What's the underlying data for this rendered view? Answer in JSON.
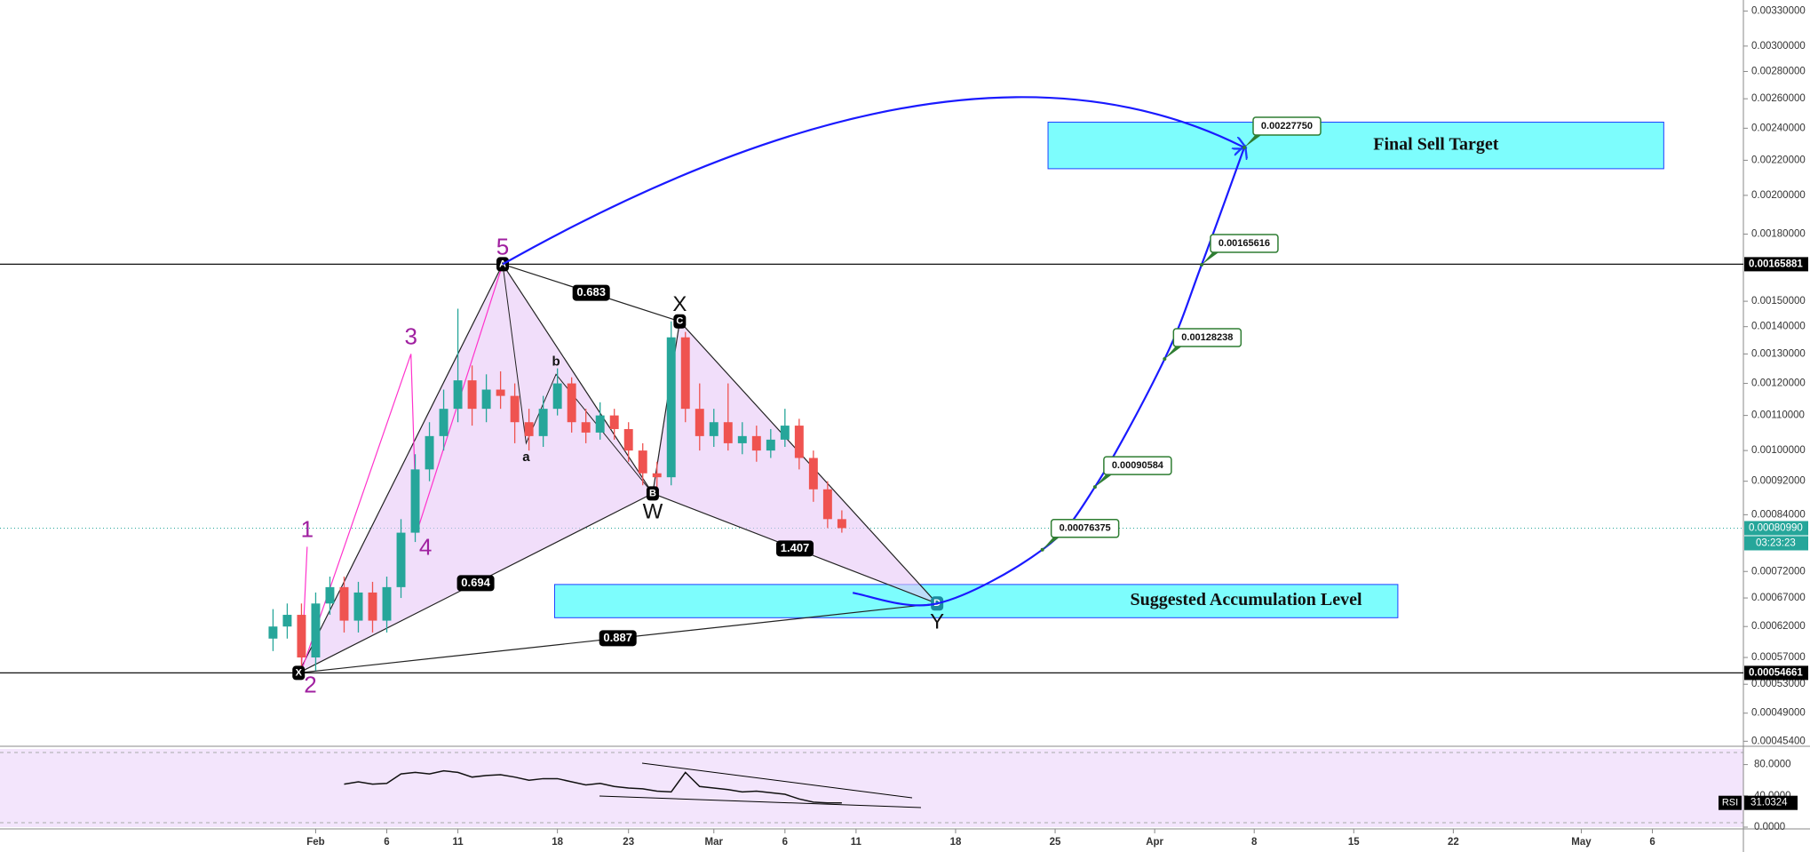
{
  "chart_data": {
    "type": "candlestick",
    "log_scale": true,
    "colors": {
      "up": "#26a69a",
      "down": "#ef5350"
    },
    "x": [
      -3,
      -2,
      -1,
      0,
      1,
      2,
      3,
      4,
      5,
      6,
      7,
      8,
      9,
      10,
      11,
      12,
      13,
      14,
      15,
      16,
      17,
      18,
      19,
      20,
      21,
      22,
      23,
      24,
      25,
      26,
      27,
      28,
      29,
      30,
      31,
      32,
      33,
      34,
      35,
      36,
      37
    ],
    "open": [
      0.0006,
      0.00062,
      0.00064,
      0.00057,
      0.00066,
      0.00069,
      0.00063,
      0.00068,
      0.00063,
      0.00069,
      0.0008,
      0.00095,
      0.00104,
      0.00112,
      0.00121,
      0.00112,
      0.00118,
      0.00116,
      0.00108,
      0.00104,
      0.00112,
      0.0012,
      0.00108,
      0.00105,
      0.0011,
      0.00106,
      0.001,
      0.00094,
      0.00093,
      0.00136,
      0.00112,
      0.00104,
      0.00108,
      0.00102,
      0.00104,
      0.001,
      0.00103,
      0.00107,
      0.00098,
      0.0009,
      0.00083
    ],
    "high": [
      0.00065,
      0.00066,
      0.00066,
      0.00068,
      0.00071,
      0.00071,
      0.0007,
      0.0007,
      0.00071,
      0.00083,
      0.00099,
      0.00108,
      0.00118,
      0.00147,
      0.00126,
      0.00123,
      0.00124,
      0.0012,
      0.00112,
      0.00116,
      0.00125,
      0.00122,
      0.00112,
      0.00114,
      0.00112,
      0.00108,
      0.00102,
      0.00097,
      0.00142,
      0.00138,
      0.0012,
      0.00112,
      0.0012,
      0.00108,
      0.00107,
      0.00106,
      0.00112,
      0.00109,
      0.001,
      0.00092,
      0.00085
    ],
    "low": [
      0.00058,
      0.0006,
      0.00055,
      0.00055,
      0.00064,
      0.00061,
      0.00061,
      0.00061,
      0.00061,
      0.00067,
      0.00078,
      0.00092,
      0.001,
      0.00108,
      0.00107,
      0.00108,
      0.00112,
      0.00102,
      0.001,
      0.00101,
      0.0011,
      0.00105,
      0.00102,
      0.00103,
      0.00103,
      0.00097,
      0.00091,
      0.00089,
      0.00091,
      0.00108,
      0.001,
      0.00101,
      0.001,
      0.00099,
      0.00097,
      0.00098,
      0.00101,
      0.00095,
      0.00087,
      0.00081,
      0.0008
    ],
    "close": [
      0.00062,
      0.00064,
      0.00057,
      0.00066,
      0.00069,
      0.00063,
      0.00068,
      0.00063,
      0.00069,
      0.0008,
      0.00095,
      0.00104,
      0.00112,
      0.00121,
      0.00112,
      0.00118,
      0.00116,
      0.00108,
      0.00104,
      0.00112,
      0.0012,
      0.00108,
      0.00105,
      0.0011,
      0.00106,
      0.001,
      0.00094,
      0.00093,
      0.00136,
      0.00112,
      0.00104,
      0.00108,
      0.00102,
      0.00104,
      0.001,
      0.00103,
      0.00107,
      0.00098,
      0.0009,
      0.00083,
      0.00081
    ],
    "xlim": [
      -22.2,
      100.4
    ],
    "xticks": [
      {
        "value": 0,
        "label": "Feb"
      },
      {
        "value": 5,
        "label": "6"
      },
      {
        "value": 10,
        "label": "11"
      },
      {
        "value": 17,
        "label": "18"
      },
      {
        "value": 22,
        "label": "23"
      },
      {
        "value": 28,
        "label": "Mar"
      },
      {
        "value": 33,
        "label": "6"
      },
      {
        "value": 38,
        "label": "11"
      },
      {
        "value": 45,
        "label": "18"
      },
      {
        "value": 52,
        "label": "25"
      },
      {
        "value": 59,
        "label": "Apr"
      },
      {
        "value": 66,
        "label": "8"
      },
      {
        "value": 73,
        "label": "15"
      },
      {
        "value": 80,
        "label": "22"
      },
      {
        "value": 89,
        "label": "May"
      },
      {
        "value": 94,
        "label": "6"
      }
    ],
    "ylim": [
      0.00045,
      0.0034
    ],
    "yticks": [
      {
        "value": 0.0033,
        "label": "0.00330000"
      },
      {
        "value": 0.003,
        "label": "0.00300000"
      },
      {
        "value": 0.0028,
        "label": "0.00280000"
      },
      {
        "value": 0.0026,
        "label": "0.00260000"
      },
      {
        "value": 0.0024,
        "label": "0.00240000"
      },
      {
        "value": 0.0022,
        "label": "0.00220000"
      },
      {
        "value": 0.002,
        "label": "0.00200000"
      },
      {
        "value": 0.0018,
        "label": "0.00180000"
      },
      {
        "value": 0.0015,
        "label": "0.00150000"
      },
      {
        "value": 0.0014,
        "label": "0.00140000"
      },
      {
        "value": 0.0013,
        "label": "0.00130000"
      },
      {
        "value": 0.0012,
        "label": "0.00120000"
      },
      {
        "value": 0.0011,
        "label": "0.00110000"
      },
      {
        "value": 0.001,
        "label": "0.00100000"
      },
      {
        "value": 0.00092,
        "label": "0.00092000"
      },
      {
        "value": 0.00084,
        "label": "0.00084000"
      },
      {
        "value": 0.00072,
        "label": "0.00072000"
      },
      {
        "value": 0.00067,
        "label": "0.00067000"
      },
      {
        "value": 0.00062,
        "label": "0.00062000"
      },
      {
        "value": 0.00057,
        "label": "0.00057000"
      },
      {
        "value": 0.00053,
        "label": "0.00053000"
      },
      {
        "value": 0.00049,
        "label": "0.00049000"
      },
      {
        "value": 0.000454,
        "label": "0.00045400"
      }
    ],
    "levels": [
      {
        "value": 0.00165881,
        "label": "0.00165881"
      },
      {
        "value": 0.00054661,
        "label": "0.00054661"
      }
    ],
    "last_price": {
      "value": 0.0008099,
      "label": "0.00080990",
      "countdown": "03:23:23"
    },
    "zones": [
      {
        "label": "Final Sell Target",
        "low": 0.00215,
        "high": 0.00244,
        "x0": 51.5,
        "x1": 94.8
      },
      {
        "label": "Suggested Accumulation Level",
        "low": 0.000635,
        "high": 0.000695,
        "x0": 16.8,
        "x1": 76.1
      }
    ],
    "targets": [
      {
        "value": 0.00076375,
        "label": "0.00076375",
        "x": 51.1
      },
      {
        "value": 0.00090584,
        "label": "0.00090584",
        "x": 54.8
      },
      {
        "value": 0.00128238,
        "label": "0.00128238",
        "x": 59.7
      },
      {
        "value": 0.00165616,
        "label": "0.00165616",
        "x": 62.3
      },
      {
        "value": 0.0022775,
        "label": "0.00227750",
        "x": 65.3
      }
    ],
    "pattern": {
      "points": [
        {
          "label": "X",
          "x": -1.2,
          "y": 0.00054661
        },
        {
          "label": "A",
          "x": 13.15,
          "y": 0.00165881
        },
        {
          "label": "B",
          "x": 23.7,
          "y": 0.00089
        },
        {
          "label": "C",
          "x": 25.6,
          "y": 0.00142
        },
        {
          "label": "D",
          "x": 43.7,
          "y": 0.00066
        }
      ],
      "ratios": [
        0.683,
        0.694,
        1.407,
        0.887
      ]
    },
    "waves": [
      {
        "label": "1",
        "x": -0.6,
        "y": 0.00077
      },
      {
        "label": "2",
        "x": -1.0,
        "y": 0.00055
      },
      {
        "label": "3",
        "x": 6.7,
        "y": 0.0013
      },
      {
        "label": "4",
        "x": 7.1,
        "y": 0.0008
      },
      {
        "label": "5",
        "x": 13.15,
        "y": 0.00165881
      }
    ],
    "subwaves": [
      {
        "label": "a",
        "x": 14.8,
        "y": 0.00102
      },
      {
        "label": "b",
        "x": 16.9,
        "y": 0.00123
      },
      {
        "label": "W",
        "x": 23.7,
        "y": 0.00089
      },
      {
        "label": "X",
        "x": 25.6,
        "y": 0.00142
      },
      {
        "label": "Y",
        "x": 43.7,
        "y": 0.00066
      }
    ],
    "rsi": {
      "name": "RSI",
      "value_label": "31.0324",
      "ylim": [
        0,
        100
      ],
      "yticks": [
        {
          "value": 80,
          "label": "80.0000"
        },
        {
          "value": 40,
          "label": "40.0000"
        },
        {
          "value": 0,
          "label": "0.0000"
        }
      ],
      "values": [
        null,
        null,
        null,
        null,
        null,
        55,
        58,
        55,
        56,
        68,
        70,
        68,
        72,
        70,
        64,
        66,
        67,
        64,
        60,
        62,
        62,
        58,
        54,
        56,
        52,
        50,
        49,
        46,
        45,
        70,
        52,
        50,
        48,
        45,
        46,
        44,
        42,
        36,
        32,
        31,
        31.0324
      ]
    }
  }
}
